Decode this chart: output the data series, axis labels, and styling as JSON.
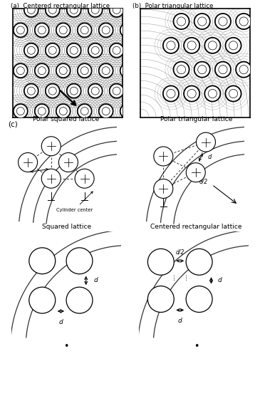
{
  "fig_width": 3.65,
  "fig_height": 5.8,
  "bg_color": "#ffffff",
  "panel_a_label": "(a)  Centered rectangular lattice",
  "panel_b_label": "(b)  Polar triangular lattice",
  "panel_c_label": "(c)",
  "panel_titles": {
    "polar_squared": "Polar squared lattice",
    "polar_triangular": "Polar triangular lattice",
    "squared": "Squared lattice",
    "centered_rect": "Centered rectangular lattice"
  }
}
